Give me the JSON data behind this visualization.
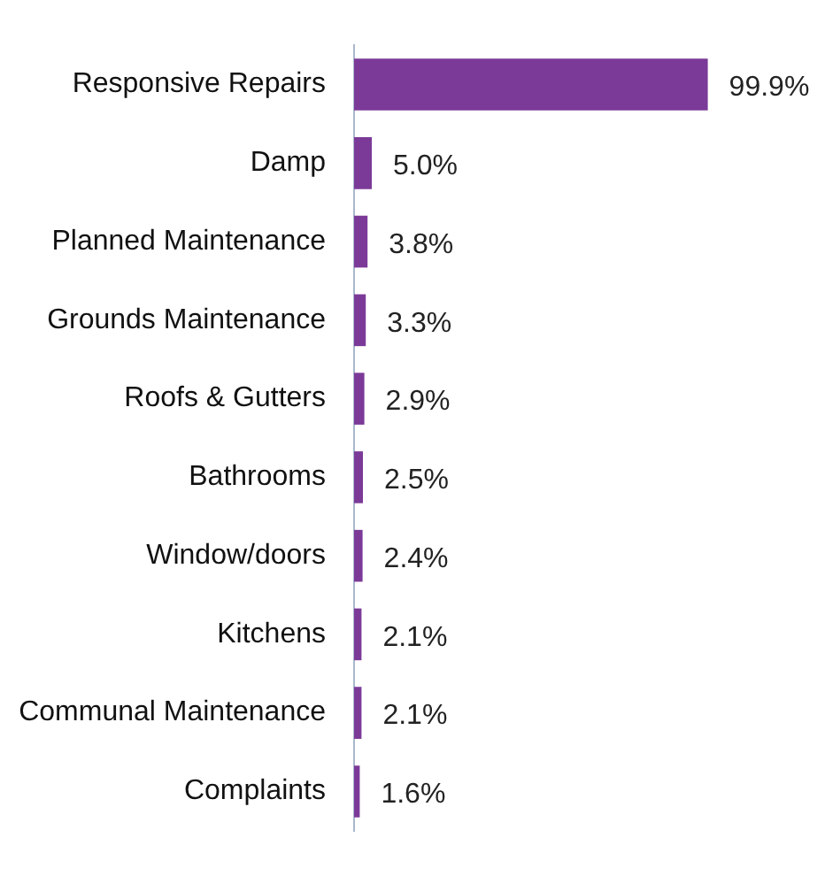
{
  "chart_data": {
    "type": "bar",
    "orientation": "horizontal",
    "categories": [
      "Responsive Repairs",
      "Damp",
      "Planned Maintenance",
      "Grounds Maintenance",
      "Roofs & Gutters",
      "Bathrooms",
      "Window/doors",
      "Kitchens",
      "Communal Maintenance",
      "Complaints"
    ],
    "values": [
      99.9,
      5.0,
      3.8,
      3.3,
      2.9,
      2.5,
      2.4,
      2.1,
      2.1,
      1.6
    ],
    "value_labels": [
      "99.9%",
      "5.0%",
      "3.8%",
      "3.3%",
      "2.9%",
      "2.5%",
      "2.4%",
      "2.1%",
      "2.1%",
      "1.6%"
    ],
    "color": "#7b3a98",
    "tick_labels": "y",
    "grid": false,
    "legend": false
  }
}
